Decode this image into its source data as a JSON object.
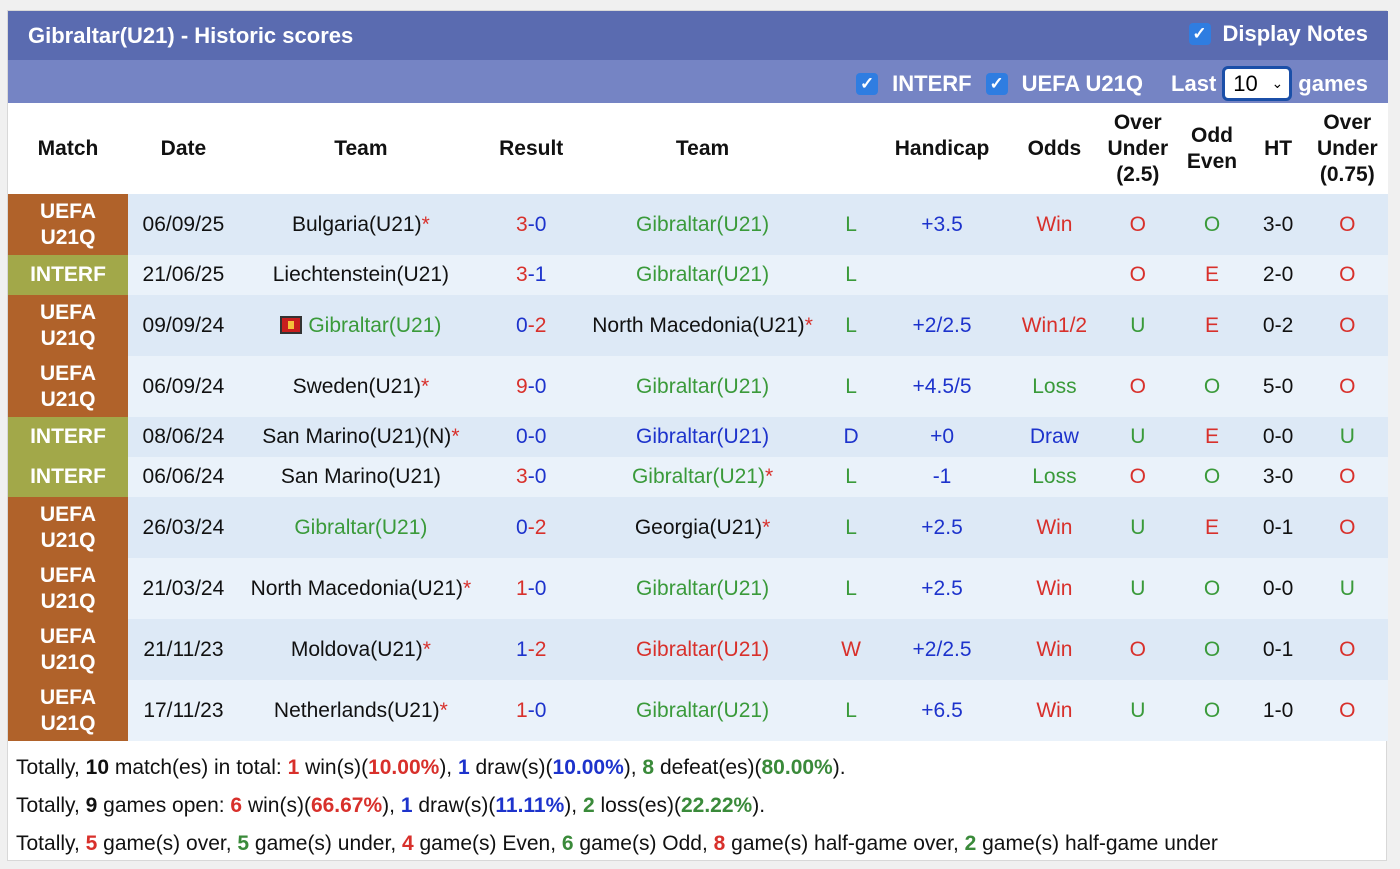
{
  "header": {
    "title": "Gibraltar(U21) - Historic scores",
    "display_notes": "Display Notes"
  },
  "filters": {
    "interf": "INTERF",
    "uefa": "UEFA U21Q",
    "last_label": "Last",
    "last_value": "10",
    "games_label": "games"
  },
  "columns": {
    "match": "Match",
    "date": "Date",
    "team1": "Team",
    "result": "Result",
    "team2": "Team",
    "handicap": "Handicap",
    "odds": "Odds",
    "ou25": "Over Under (2.5)",
    "oddeven": "Odd Even",
    "ht": "HT",
    "ou075": "Over Under (0.75)"
  },
  "rows": [
    {
      "match": "UEFA U21Q",
      "type": "uefa",
      "date": "06/09/25",
      "home": "Bulgaria(U21)",
      "home_star": "*",
      "home_color": "black",
      "home_flag": false,
      "score_home": "3",
      "score_away": "0",
      "score_home_color": "red",
      "score_away_color": "blue",
      "away": "Gibraltar(U21)",
      "away_star": "",
      "away_color": "green",
      "wl": "L",
      "wl_color": "green",
      "handicap": "+3.5",
      "odds": "Win",
      "odds_color": "red",
      "ou": "O",
      "ou_color": "red",
      "oe": "O",
      "oe_color": "green",
      "ht": "3-0",
      "ou2": "O",
      "ou2_color": "red"
    },
    {
      "match": "INTERF",
      "type": "interf",
      "date": "21/06/25",
      "home": "Liechtenstein(U21)",
      "home_star": "",
      "home_color": "black",
      "home_flag": false,
      "score_home": "3",
      "score_away": "1",
      "score_home_color": "red",
      "score_away_color": "blue",
      "away": "Gibraltar(U21)",
      "away_star": "",
      "away_color": "green",
      "wl": "L",
      "wl_color": "green",
      "handicap": "",
      "odds": "",
      "odds_color": "red",
      "ou": "O",
      "ou_color": "red",
      "oe": "E",
      "oe_color": "red",
      "ht": "2-0",
      "ou2": "O",
      "ou2_color": "red"
    },
    {
      "match": "UEFA U21Q",
      "type": "uefa",
      "date": "09/09/24",
      "home": "Gibraltar(U21)",
      "home_star": "",
      "home_color": "green",
      "home_flag": true,
      "score_home": "0",
      "score_away": "2",
      "score_home_color": "blue",
      "score_away_color": "red",
      "away": "North Macedonia(U21)",
      "away_star": "*",
      "away_color": "black",
      "wl": "L",
      "wl_color": "green",
      "handicap": "+2/2.5",
      "odds": "Win1/2",
      "odds_color": "red",
      "ou": "U",
      "ou_color": "green",
      "oe": "E",
      "oe_color": "red",
      "ht": "0-2",
      "ou2": "O",
      "ou2_color": "red"
    },
    {
      "match": "UEFA U21Q",
      "type": "uefa",
      "date": "06/09/24",
      "home": "Sweden(U21)",
      "home_star": "*",
      "home_color": "black",
      "home_flag": false,
      "score_home": "9",
      "score_away": "0",
      "score_home_color": "red",
      "score_away_color": "blue",
      "away": "Gibraltar(U21)",
      "away_star": "",
      "away_color": "green",
      "wl": "L",
      "wl_color": "green",
      "handicap": "+4.5/5",
      "odds": "Loss",
      "odds_color": "green",
      "ou": "O",
      "ou_color": "red",
      "oe": "O",
      "oe_color": "green",
      "ht": "5-0",
      "ou2": "O",
      "ou2_color": "red"
    },
    {
      "match": "INTERF",
      "type": "interf",
      "date": "08/06/24",
      "home": "San Marino(U21)(N)",
      "home_star": "*",
      "home_color": "black",
      "home_flag": false,
      "score_home": "0",
      "score_away": "0",
      "score_home_color": "blue",
      "score_away_color": "blue",
      "away": "Gibraltar(U21)",
      "away_star": "",
      "away_color": "blue",
      "wl": "D",
      "wl_color": "blue",
      "handicap": "+0",
      "odds": "Draw",
      "odds_color": "blue",
      "ou": "U",
      "ou_color": "green",
      "oe": "E",
      "oe_color": "red",
      "ht": "0-0",
      "ou2": "U",
      "ou2_color": "green"
    },
    {
      "match": "INTERF",
      "type": "interf",
      "date": "06/06/24",
      "home": "San Marino(U21)",
      "home_star": "",
      "home_color": "black",
      "home_flag": false,
      "score_home": "3",
      "score_away": "0",
      "score_home_color": "red",
      "score_away_color": "blue",
      "away": "Gibraltar(U21)",
      "away_star": "*",
      "away_color": "green",
      "wl": "L",
      "wl_color": "green",
      "handicap": "-1",
      "odds": "Loss",
      "odds_color": "green",
      "ou": "O",
      "ou_color": "red",
      "oe": "O",
      "oe_color": "green",
      "ht": "3-0",
      "ou2": "O",
      "ou2_color": "red"
    },
    {
      "match": "UEFA U21Q",
      "type": "uefa",
      "date": "26/03/24",
      "home": "Gibraltar(U21)",
      "home_star": "",
      "home_color": "green",
      "home_flag": false,
      "score_home": "0",
      "score_away": "2",
      "score_home_color": "blue",
      "score_away_color": "red",
      "away": "Georgia(U21)",
      "away_star": "*",
      "away_color": "black",
      "wl": "L",
      "wl_color": "green",
      "handicap": "+2.5",
      "odds": "Win",
      "odds_color": "red",
      "ou": "U",
      "ou_color": "green",
      "oe": "E",
      "oe_color": "red",
      "ht": "0-1",
      "ou2": "O",
      "ou2_color": "red"
    },
    {
      "match": "UEFA U21Q",
      "type": "uefa",
      "date": "21/03/24",
      "home": "North Macedonia(U21)",
      "home_star": "*",
      "home_color": "black",
      "home_flag": false,
      "score_home": "1",
      "score_away": "0",
      "score_home_color": "red",
      "score_away_color": "blue",
      "away": "Gibraltar(U21)",
      "away_star": "",
      "away_color": "green",
      "wl": "L",
      "wl_color": "green",
      "handicap": "+2.5",
      "odds": "Win",
      "odds_color": "red",
      "ou": "U",
      "ou_color": "green",
      "oe": "O",
      "oe_color": "green",
      "ht": "0-0",
      "ou2": "U",
      "ou2_color": "green"
    },
    {
      "match": "UEFA U21Q",
      "type": "uefa",
      "date": "21/11/23",
      "home": "Moldova(U21)",
      "home_star": "*",
      "home_color": "black",
      "home_flag": false,
      "score_home": "1",
      "score_away": "2",
      "score_home_color": "blue",
      "score_away_color": "red",
      "away": "Gibraltar(U21)",
      "away_star": "",
      "away_color": "red",
      "wl": "W",
      "wl_color": "red",
      "handicap": "+2/2.5",
      "odds": "Win",
      "odds_color": "red",
      "ou": "O",
      "ou_color": "red",
      "oe": "O",
      "oe_color": "green",
      "ht": "0-1",
      "ou2": "O",
      "ou2_color": "red"
    },
    {
      "match": "UEFA U21Q",
      "type": "uefa",
      "date": "17/11/23",
      "home": "Netherlands(U21)",
      "home_star": "*",
      "home_color": "black",
      "home_flag": false,
      "score_home": "1",
      "score_away": "0",
      "score_home_color": "red",
      "score_away_color": "blue",
      "away": "Gibraltar(U21)",
      "away_star": "",
      "away_color": "green",
      "wl": "L",
      "wl_color": "green",
      "handicap": "+6.5",
      "odds": "Win",
      "odds_color": "red",
      "ou": "U",
      "ou_color": "green",
      "oe": "O",
      "oe_color": "green",
      "ht": "1-0",
      "ou2": "O",
      "ou2_color": "red"
    }
  ],
  "summary": {
    "line1": {
      "t1": "Totally, ",
      "matches": "10",
      "t2": " match(es) in total: ",
      "wins": "1",
      "t3": " win(s)(",
      "win_pct": "10.00%",
      "t4": "), ",
      "draws": "1",
      "t5": " draw(s)(",
      "draw_pct": "10.00%",
      "t6": "), ",
      "defeats": "8",
      "t7": " defeat(es)(",
      "defeat_pct": "80.00%",
      "t8": ")."
    },
    "line2": {
      "t1": "Totally, ",
      "games": "9",
      "t2": " games open: ",
      "wins": "6",
      "t3": " win(s)(",
      "win_pct": "66.67%",
      "t4": "), ",
      "draws": "1",
      "t5": " draw(s)(",
      "draw_pct": "11.11%",
      "t6": "), ",
      "losses": "2",
      "t7": " loss(es)(",
      "loss_pct": "22.22%",
      "t8": ")."
    },
    "line3": {
      "t1": "Totally, ",
      "over": "5",
      "t2": " game(s) over, ",
      "under": "5",
      "t3": " game(s) under, ",
      "even": "4",
      "t4": " game(s) Even, ",
      "odd": "6",
      "t5": " game(s) Odd, ",
      "hgo": "8",
      "t6": " game(s) half-game over, ",
      "hgu": "2",
      "t7": " game(s) half-game under"
    }
  },
  "colors": {
    "header": "#5a6bb0",
    "filterbar": "#7584c4",
    "uefa": "#b0622a",
    "interf": "#a2a849",
    "red": "#d8302b",
    "green": "#3a9a3a",
    "blue": "#1d33cc"
  }
}
